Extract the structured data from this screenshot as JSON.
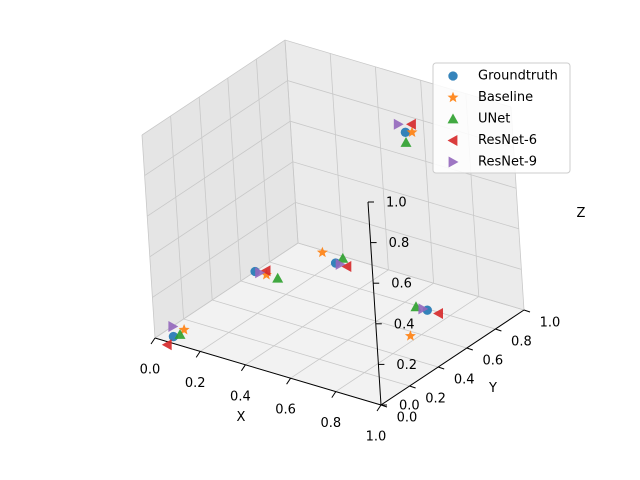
{
  "chart_data": {
    "type": "scatter",
    "projection": "3d",
    "xlabel": "X",
    "ylabel": "Y",
    "zlabel": "Z",
    "xlim": [
      0,
      1
    ],
    "ylim": [
      0,
      1
    ],
    "zlim": [
      0,
      1
    ],
    "xticks": [
      "0.0",
      "0.2",
      "0.4",
      "0.6",
      "0.8",
      "1.0"
    ],
    "yticks": [
      "0.0",
      "0.2",
      "0.4",
      "0.6",
      "0.8",
      "1.0"
    ],
    "zticks": [
      "0.0",
      "0.2",
      "0.4",
      "0.6",
      "0.8",
      "1.0"
    ],
    "grid": true,
    "legend_position": "top-right",
    "series": [
      {
        "name": "Groundtruth",
        "marker": "circle",
        "color": "#1f77b4",
        "points": [
          [
            0.05,
            0.05,
            0.0
          ],
          [
            0.55,
            0.95,
            0.75
          ],
          [
            0.0,
            0.7,
            0.0
          ],
          [
            0.5,
            0.5,
            0.3
          ],
          [
            0.9,
            0.5,
            0.2
          ]
        ]
      },
      {
        "name": "Baseline",
        "marker": "star",
        "color": "#ff7f0e",
        "points": [
          [
            0.1,
            0.05,
            0.05
          ],
          [
            0.58,
            0.95,
            0.76
          ],
          [
            0.05,
            0.7,
            0.0
          ],
          [
            0.43,
            0.52,
            0.32
          ],
          [
            0.85,
            0.45,
            0.08
          ]
        ]
      },
      {
        "name": "UNet",
        "marker": "triangle-up",
        "color": "#2ca02c",
        "points": [
          [
            0.08,
            0.05,
            0.02
          ],
          [
            0.55,
            0.95,
            0.7
          ],
          [
            0.1,
            0.7,
            0.0
          ],
          [
            0.5,
            0.55,
            0.3
          ],
          [
            0.85,
            0.5,
            0.2
          ]
        ]
      },
      {
        "name": "ResNet-6",
        "marker": "triangle-left",
        "color": "#d62728",
        "points": [
          [
            0.02,
            0.05,
            -0.05
          ],
          [
            0.58,
            0.95,
            0.8
          ],
          [
            0.05,
            0.7,
            0.02
          ],
          [
            0.55,
            0.5,
            0.3
          ],
          [
            0.95,
            0.5,
            0.2
          ]
        ]
      },
      {
        "name": "ResNet-9",
        "marker": "triangle-right",
        "color": "#9467bd",
        "points": [
          [
            0.05,
            0.05,
            0.05
          ],
          [
            0.52,
            0.95,
            0.78
          ],
          [
            0.02,
            0.7,
            0.0
          ],
          [
            0.52,
            0.5,
            0.3
          ],
          [
            0.88,
            0.5,
            0.2
          ]
        ]
      }
    ]
  }
}
